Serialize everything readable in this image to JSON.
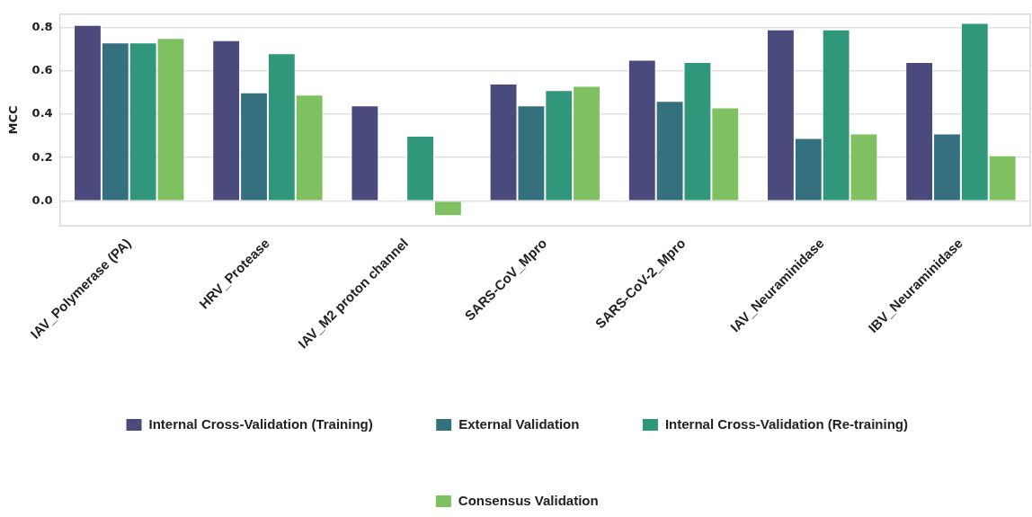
{
  "chart_data": {
    "type": "bar",
    "ylabel": "MCC",
    "categories": [
      "IAV_Polymerase (PA)",
      "HRV_Protease",
      "IAV_M2 proton channel",
      "SARS-CoV_Mpro",
      "SARS-CoV-2_Mpro",
      "IAV_Neuraminidase",
      "IBV_Neuraminidase"
    ],
    "series": [
      {
        "name": "Internal Cross-Validation (Training)",
        "color": "#4a4a7c",
        "values": [
          0.81,
          0.74,
          0.44,
          0.54,
          0.65,
          0.79,
          0.64
        ]
      },
      {
        "name": "External Validation",
        "color": "#35707f",
        "values": [
          0.73,
          0.5,
          null,
          0.44,
          0.46,
          0.29,
          0.31
        ]
      },
      {
        "name": "Internal Cross-Validation (Re-training)",
        "color": "#31977a",
        "values": [
          0.73,
          0.68,
          0.3,
          0.51,
          0.64,
          0.79,
          0.82
        ]
      },
      {
        "name": "Consensus Validation",
        "color": "#7fc060",
        "values": [
          0.75,
          0.49,
          -0.07,
          0.53,
          0.43,
          0.31,
          0.21
        ]
      }
    ],
    "ylim": [
      -0.115,
      0.86
    ],
    "yticks": [
      {
        "value": 0,
        "label": "0.0"
      },
      0.2,
      0.4,
      0.6,
      0.8
    ],
    "grid": "y",
    "legend": "bottom"
  }
}
